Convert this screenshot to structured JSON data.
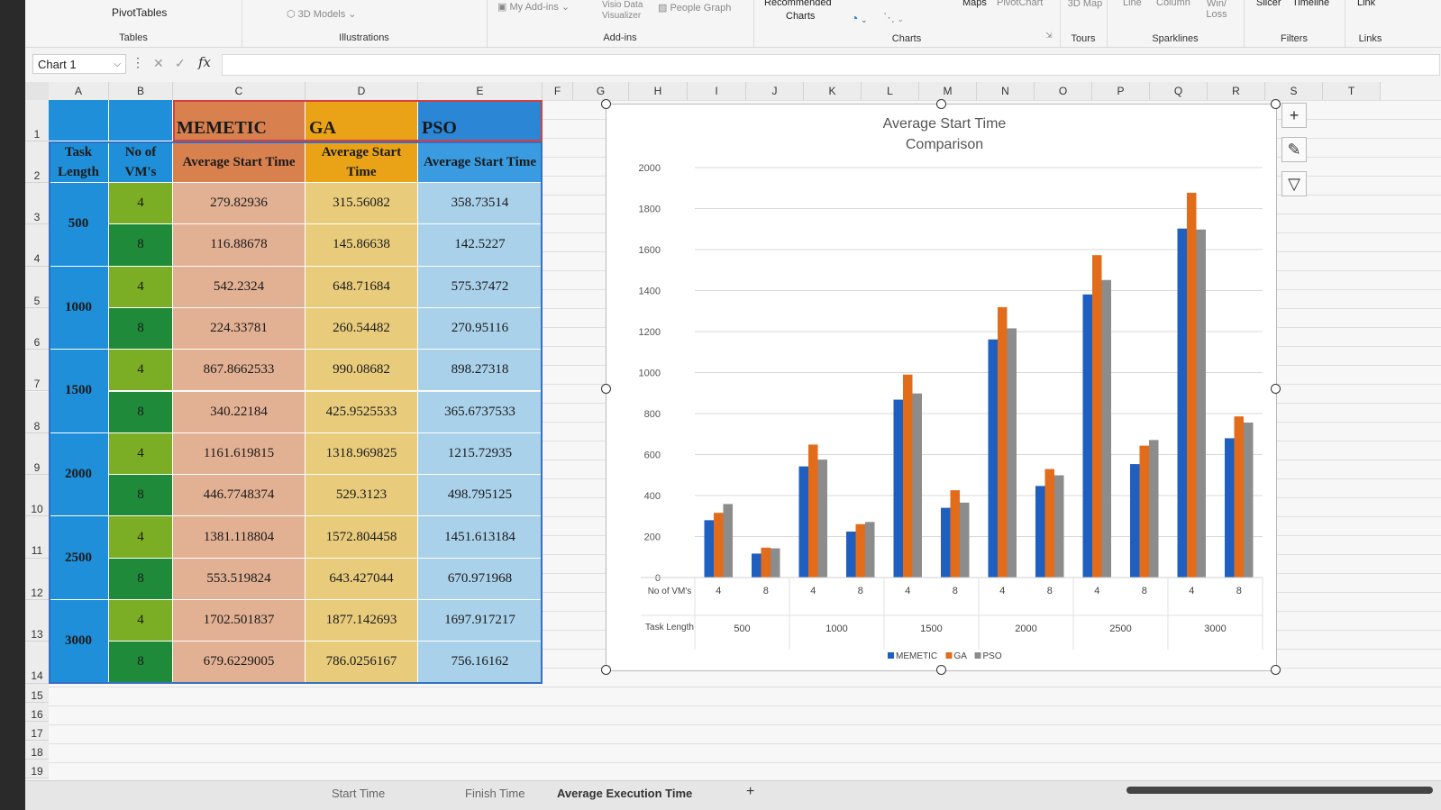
{
  "ribbon": {
    "groups": [
      {
        "label": "Tables"
      },
      {
        "label": "Illustrations"
      },
      {
        "label": "Add-ins"
      },
      {
        "label": "Charts"
      },
      {
        "label": "Tours"
      },
      {
        "label": "Sparklines"
      },
      {
        "label": "Filters"
      },
      {
        "label": "Links"
      }
    ],
    "items": {
      "pivot_tables": "PivotTables",
      "models_3d": "3D Models",
      "my_addins": "My Add-ins",
      "visio": "Visio Data Visualizer",
      "people_graph": "People Graph",
      "recommended": "Recommended",
      "charts": "Charts",
      "maps": "Maps",
      "pivot_chart": "PivotChart",
      "map_3d": "3D Map",
      "line": "Line",
      "column": "Column",
      "win_loss": "Win/ Loss",
      "slicer": "Slicer",
      "timeline": "Timeline",
      "link": "Link"
    }
  },
  "formula_bar": {
    "name_box": "Chart 1",
    "fx": "fx"
  },
  "columns": [
    "A",
    "B",
    "C",
    "D",
    "E",
    "F",
    "G",
    "H",
    "I",
    "J",
    "K",
    "L",
    "M",
    "N",
    "O",
    "P",
    "Q",
    "R",
    "S",
    "T"
  ],
  "rows": [
    "1",
    "2",
    "3",
    "4",
    "5",
    "6",
    "7",
    "8",
    "9",
    "10",
    "11",
    "12",
    "13",
    "14",
    "15",
    "16",
    "17",
    "18",
    "19"
  ],
  "table": {
    "algorithms": [
      "MEMETIC",
      "GA",
      "PSO"
    ],
    "header_task_length": "Task Length",
    "header_vms": "No of VM's",
    "header_avg": "Average Start Time",
    "groups": [
      {
        "task_length": "500",
        "rows": [
          {
            "vms": "4",
            "memetic": "279.82936",
            "ga": "315.56082",
            "pso": "358.73514"
          },
          {
            "vms": "8",
            "memetic": "116.88678",
            "ga": "145.86638",
            "pso": "142.5227"
          }
        ]
      },
      {
        "task_length": "1000",
        "rows": [
          {
            "vms": "4",
            "memetic": "542.2324",
            "ga": "648.71684",
            "pso": "575.37472"
          },
          {
            "vms": "8",
            "memetic": "224.33781",
            "ga": "260.54482",
            "pso": "270.95116"
          }
        ]
      },
      {
        "task_length": "1500",
        "rows": [
          {
            "vms": "4",
            "memetic": "867.8662533",
            "ga": "990.08682",
            "pso": "898.27318"
          },
          {
            "vms": "8",
            "memetic": "340.22184",
            "ga": "425.9525533",
            "pso": "365.6737533"
          }
        ]
      },
      {
        "task_length": "2000",
        "rows": [
          {
            "vms": "4",
            "memetic": "1161.619815",
            "ga": "1318.969825",
            "pso": "1215.72935"
          },
          {
            "vms": "8",
            "memetic": "446.7748374",
            "ga": "529.3123",
            "pso": "498.795125"
          }
        ]
      },
      {
        "task_length": "2500",
        "rows": [
          {
            "vms": "4",
            "memetic": "1381.118804",
            "ga": "1572.804458",
            "pso": "1451.613184"
          },
          {
            "vms": "8",
            "memetic": "553.519824",
            "ga": "643.427044",
            "pso": "670.971968"
          }
        ]
      },
      {
        "task_length": "3000",
        "rows": [
          {
            "vms": "4",
            "memetic": "1702.501837",
            "ga": "1877.142693",
            "pso": "1697.917217"
          },
          {
            "vms": "8",
            "memetic": "679.6229005",
            "ga": "786.0256167",
            "pso": "756.16162"
          }
        ]
      }
    ]
  },
  "colors": {
    "task_length_bg": "#1e8fd8",
    "vm4_bg": "#7cae25",
    "vm8_bg": "#1f8a3a",
    "memetic_head": "#d8814f",
    "memetic_bg": "#e2b093",
    "ga_head": "#eaa316",
    "ga_bg": "#e8cc7c",
    "pso_head": "#2b86d6",
    "pso_bg": "#aad1ea",
    "pso_col2": "#3a9be0",
    "series_memetic": "#1f5fbf",
    "series_ga": "#e36c1a",
    "series_pso": "#8c8c8c"
  },
  "chart_data": {
    "type": "bar",
    "title": "Average Start Time Comparison",
    "x_level_labels": [
      "No of VM's",
      "Task Length"
    ],
    "categories": [
      "4",
      "8",
      "4",
      "8",
      "4",
      "8",
      "4",
      "8",
      "4",
      "8",
      "4",
      "8"
    ],
    "groups": [
      "500",
      "1000",
      "1500",
      "2000",
      "2500",
      "3000"
    ],
    "series": [
      {
        "name": "MEMETIC",
        "values": [
          279.82936,
          116.88678,
          542.2324,
          224.33781,
          867.8662533,
          340.22184,
          1161.619815,
          446.7748374,
          1381.118804,
          553.519824,
          1702.501837,
          679.6229005
        ]
      },
      {
        "name": "GA",
        "values": [
          315.56082,
          145.86638,
          648.71684,
          260.54482,
          990.08682,
          425.9525533,
          1318.969825,
          529.3123,
          1572.804458,
          643.427044,
          1877.142693,
          786.0256167
        ]
      },
      {
        "name": "PSO",
        "values": [
          358.73514,
          142.5227,
          575.37472,
          270.95116,
          898.27318,
          365.6737533,
          1215.72935,
          498.795125,
          1451.613184,
          670.971968,
          1697.917217,
          756.16162
        ]
      }
    ],
    "ylim": [
      0,
      2000
    ],
    "yticks": [
      "0",
      "200",
      "400",
      "600",
      "800",
      "1000",
      "1200",
      "1400",
      "1600",
      "1800",
      "2000"
    ],
    "grid": true,
    "legend": "bottom"
  },
  "sheet_tabs": [
    "Start Time",
    "Finish Time",
    "Average Execution Time"
  ],
  "add_sheet": "+"
}
